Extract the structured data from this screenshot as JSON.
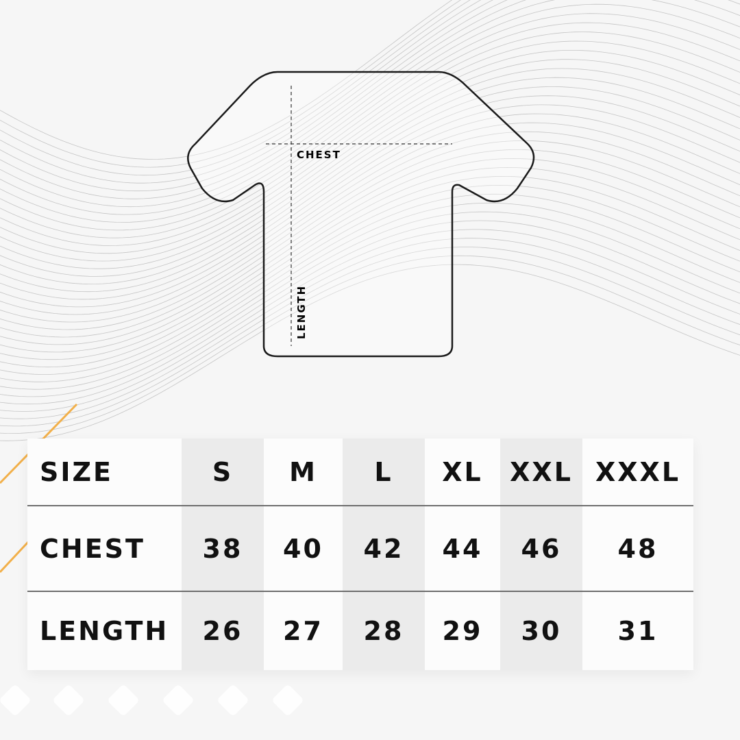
{
  "diagram": {
    "chest_label": "CHEST",
    "length_label": "LENGTH"
  },
  "colors": {
    "accent": "#f2b04a",
    "outline": "#1a1a1a",
    "shaded_column": "#ebebeb"
  },
  "table": {
    "header_label": "SIZE",
    "sizes": [
      "S",
      "M",
      "L",
      "XL",
      "XXL",
      "XXXL"
    ],
    "rows": [
      {
        "label": "CHEST",
        "values": [
          "38",
          "40",
          "42",
          "44",
          "46",
          "48"
        ]
      },
      {
        "label": "LENGTH",
        "values": [
          "26",
          "27",
          "28",
          "29",
          "30",
          "31"
        ]
      }
    ]
  }
}
